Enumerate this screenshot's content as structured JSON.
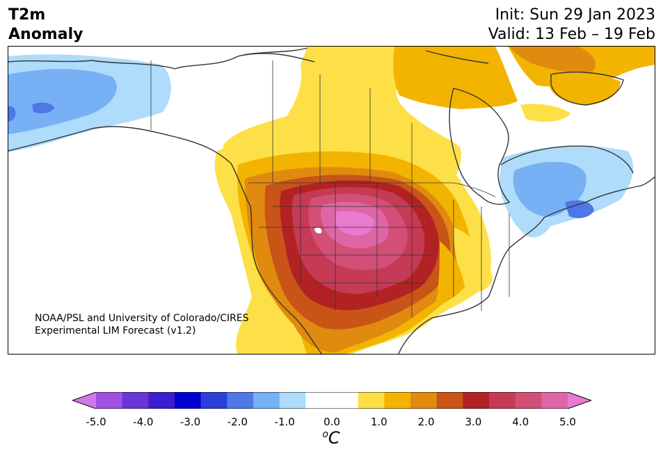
{
  "header": {
    "title_line1": "T2m",
    "title_line2": "Anomaly",
    "init": "Init: Sun 29 Jan 2023",
    "valid": "Valid: 13 Feb – 19 Feb"
  },
  "credit": {
    "line1": "NOAA/PSL and University of Colorado/CIRES",
    "line2": "Experimental LIM Forecast (v1.2)"
  },
  "colorbar": {
    "unit_sup": "o",
    "unit": "C",
    "ticks": [
      "-5.0",
      "-4.0",
      "-3.0",
      "-2.0",
      "-1.0",
      "0.0",
      "1.0",
      "2.0",
      "3.0",
      "4.0",
      "5.0"
    ],
    "colors": [
      "#d277e8",
      "#9f51e0",
      "#6a35d8",
      "#3a1fd0",
      "#0000d0",
      "#2a3fd8",
      "#4f77e6",
      "#77b0f4",
      "#aedcfa",
      "#ffffff",
      "#ffffff",
      "#fde047",
      "#f2b400",
      "#e08a10",
      "#c85418",
      "#b22222",
      "#c53a55",
      "#d24f78",
      "#de66a6",
      "#e87ad0"
    ]
  },
  "map": {
    "region": "North America",
    "variable": "2m temperature anomaly",
    "features": {
      "warm_core": "central and northern Great Plains",
      "cold_regions": [
        "Alaska",
        "Quebec",
        "New England"
      ]
    }
  }
}
